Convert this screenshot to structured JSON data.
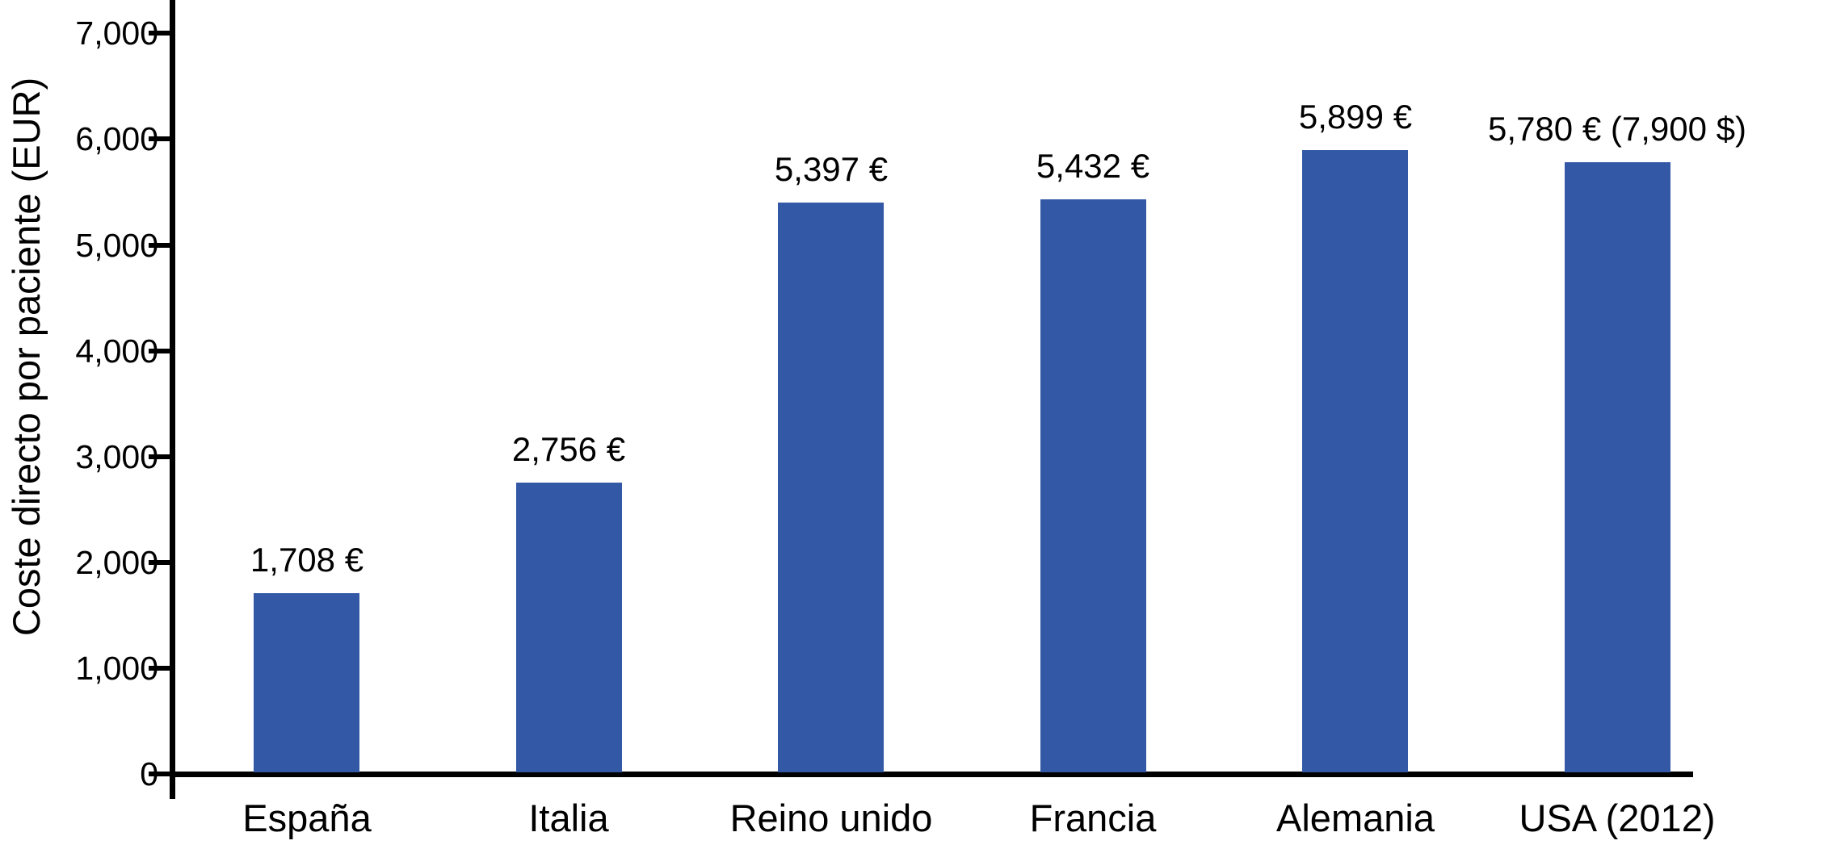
{
  "chart_data": {
    "type": "bar",
    "title": "",
    "ylabel": "Coste directo por paciente (EUR)",
    "xlabel": "",
    "categories": [
      "España",
      "Italia",
      "Reino unido",
      "Francia",
      "Alemania",
      "USA (2012)"
    ],
    "values": [
      1708,
      2756,
      5397,
      5432,
      5899,
      5780
    ],
    "value_labels": [
      "1,708 €",
      "2,756 €",
      "5,397 €",
      "5,432 €",
      "5,899 €",
      "5,780 € (7,900 $)"
    ],
    "yticks": [
      0,
      1000,
      2000,
      3000,
      4000,
      5000,
      6000,
      7000
    ],
    "ytick_labels": [
      "0",
      "1,000",
      "2,000",
      "3,000",
      "4,000",
      "5,000",
      "6,000",
      "7,000"
    ],
    "ylim": [
      0,
      7320
    ],
    "grid": false,
    "legend": false,
    "colors": {
      "bar": "#3359A6",
      "axis": "#000000",
      "text": "#000000",
      "background": "#ffffff"
    }
  }
}
